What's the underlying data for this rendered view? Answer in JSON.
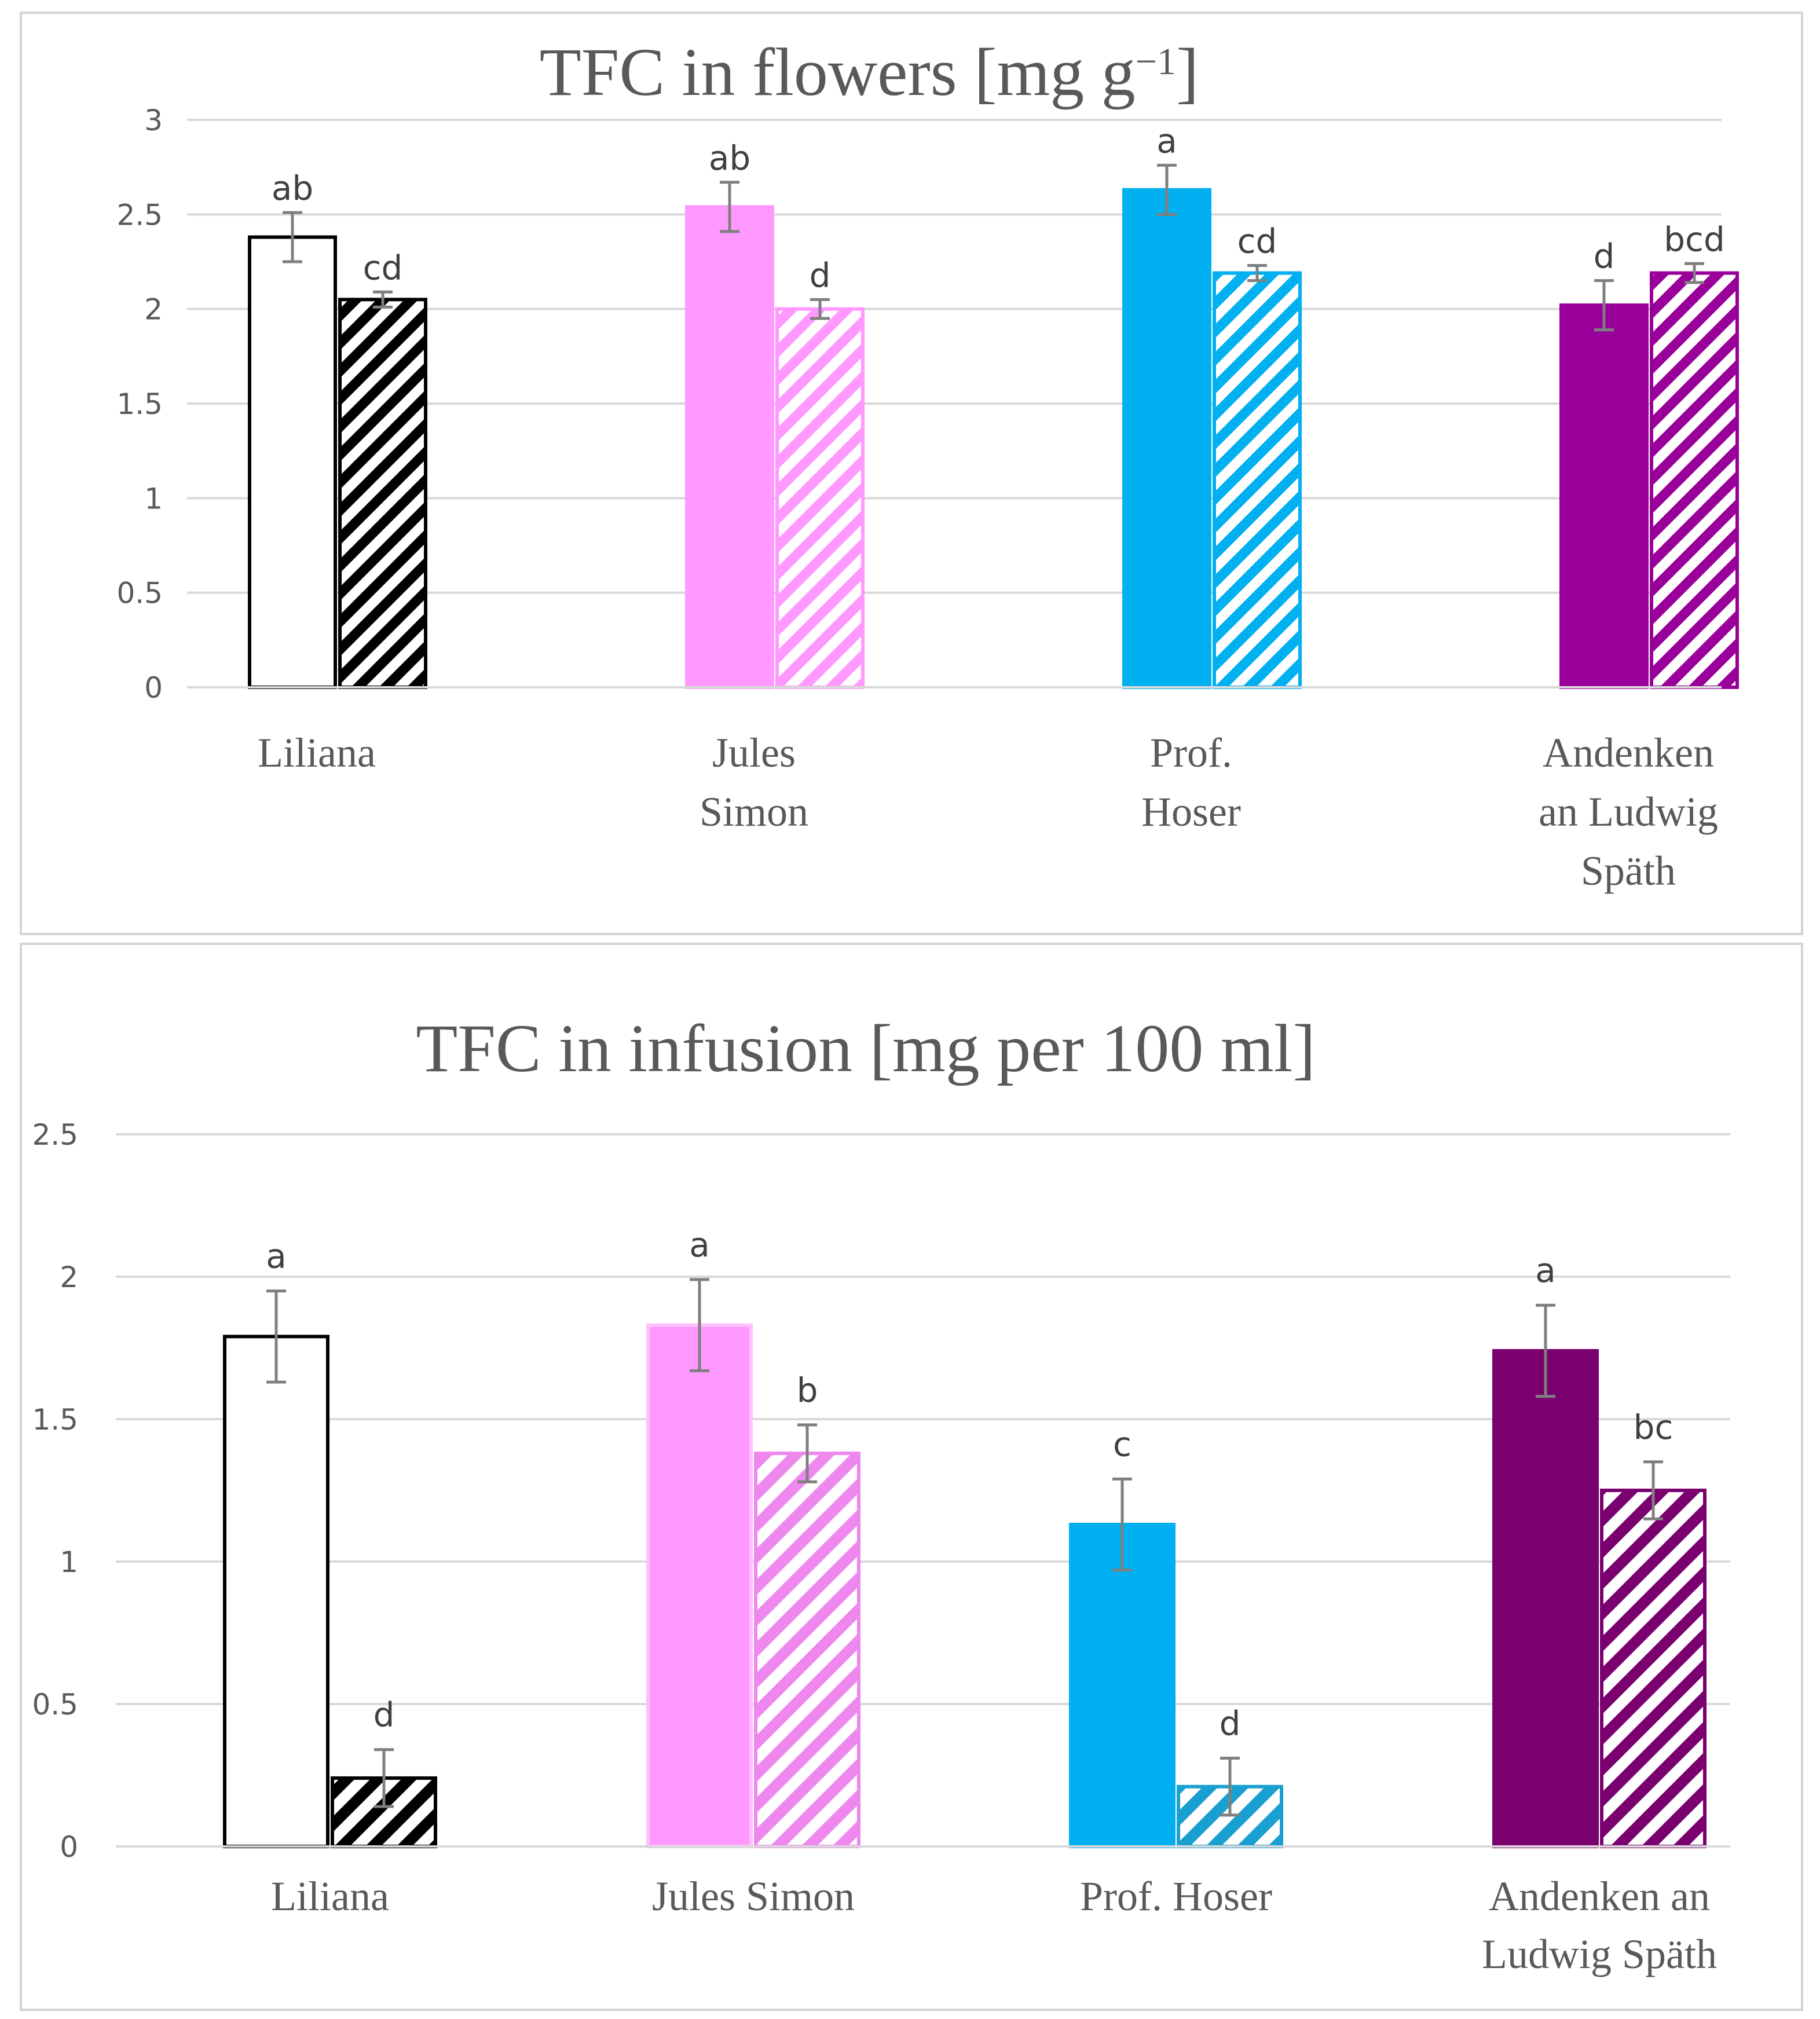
{
  "chart_data": [
    {
      "type": "bar",
      "title": "TFC in flowers [mg g",
      "title_superscript": "−1",
      "title_suffix": "]",
      "ylim": [
        0,
        3
      ],
      "yticks": [
        0,
        0.5,
        1,
        1.5,
        2,
        2.5,
        3
      ],
      "categories": [
        "Liliana",
        "Jules Simon",
        "Prof. Hoser",
        "Andenken an Ludwig Späth"
      ],
      "category_label_lines": [
        [
          "Liliana"
        ],
        [
          "Jules",
          "Simon"
        ],
        [
          "Prof.",
          "Hoser"
        ],
        [
          "Andenken",
          "an Ludwig",
          "Späth"
        ]
      ],
      "series": [
        {
          "name": "solid",
          "pattern": "solid",
          "values": [
            2.38,
            2.54,
            2.63,
            2.02
          ],
          "errors": [
            0.13,
            0.13,
            0.13,
            0.13
          ],
          "labels": [
            "ab",
            "ab",
            "a",
            "d"
          ]
        },
        {
          "name": "hatched",
          "pattern": "hatched",
          "values": [
            2.05,
            2.0,
            2.19,
            2.19
          ],
          "errors": [
            0.04,
            0.05,
            0.04,
            0.05
          ],
          "labels": [
            "cd",
            "d",
            "cd",
            "bcd"
          ]
        }
      ],
      "grid": true
    },
    {
      "type": "bar",
      "title": "TFC in infusion [mg per 100 ml]",
      "ylim": [
        0,
        2.5
      ],
      "yticks": [
        0,
        0.5,
        1,
        1.5,
        2,
        2.5
      ],
      "categories": [
        "Liliana",
        "Jules Simon",
        "Prof. Hoser",
        "Andenken an Ludwig Späth"
      ],
      "category_label_lines": [
        [
          "Liliana"
        ],
        [
          "Jules Simon"
        ],
        [
          "Prof. Hoser"
        ],
        [
          "Andenken an",
          "Ludwig Späth"
        ]
      ],
      "series": [
        {
          "name": "solid",
          "pattern": "solid",
          "values": [
            1.79,
            1.83,
            1.13,
            1.74
          ],
          "errors": [
            0.16,
            0.16,
            0.16,
            0.16
          ],
          "labels": [
            "a",
            "a",
            "c",
            "a"
          ]
        },
        {
          "name": "hatched",
          "pattern": "hatched",
          "values": [
            0.24,
            1.38,
            0.21,
            1.25
          ],
          "errors": [
            0.1,
            0.1,
            0.1,
            0.1
          ],
          "labels": [
            "d",
            "b",
            "d",
            "bc"
          ]
        }
      ],
      "grid": true
    }
  ],
  "colors": {
    "gridline": "#d9d9d9",
    "errorbar": "#7f7f7f",
    "chart1": [
      "#000000",
      "#ff99ff",
      "#00b0f0",
      "#990099"
    ],
    "chart2_fill": [
      "#ffffff",
      "#ff99ff",
      "#00b0f0",
      "#7a0070"
    ],
    "chart2_stroke": [
      "#000000",
      "#ffc0ff",
      "#00b0f0",
      "#7a0070"
    ],
    "chart2_hatch": [
      "#000000",
      "#ee88ee",
      "#1aa0d0",
      "#7a0070"
    ]
  }
}
